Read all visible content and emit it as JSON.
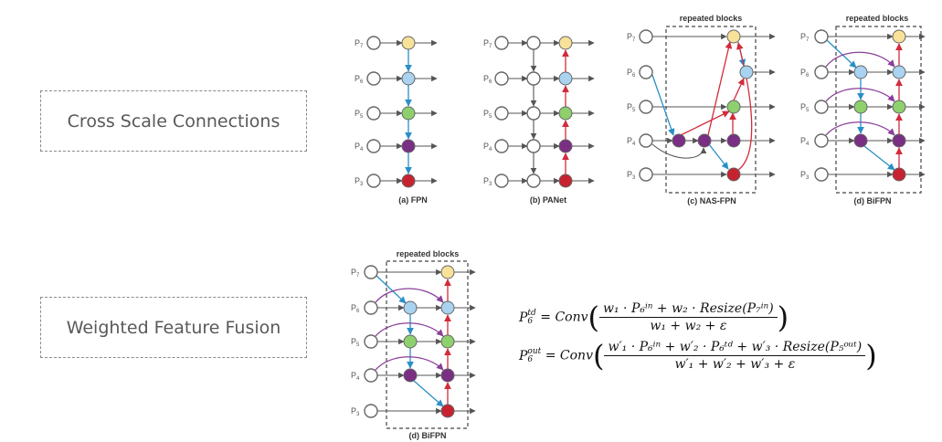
{
  "labels": {
    "cross_scale": "Cross Scale Connections",
    "weighted": "Weighted Feature Fusion"
  },
  "levels": {
    "P7": {
      "base": "P",
      "sub": "7"
    },
    "P6": {
      "base": "P",
      "sub": "6"
    },
    "P5": {
      "base": "P",
      "sub": "5"
    },
    "P4": {
      "base": "P",
      "sub": "4"
    },
    "P3": {
      "base": "P",
      "sub": "3"
    }
  },
  "captions": {
    "fpn": "(a) FPN",
    "panet": "(b) PANet",
    "nasfpn": "(c) NAS-FPN",
    "bifpn": "(d) BiFPN",
    "bifpn_large": "(d) BiFPN"
  },
  "repeated_blocks": "repeated blocks",
  "colors": {
    "p7": "#f8e29a",
    "p6": "#a9d3f0",
    "p5": "#8ed06d",
    "p4": "#7a2e84",
    "p3": "#c7222f",
    "blue_edge": "#2a8fc7",
    "red_edge": "#d22b3a",
    "purple_edge": "#8a3f98"
  },
  "formula": {
    "line1": {
      "lhs_base": "P",
      "lhs_sub": "6",
      "lhs_sup": "td",
      "conv": "Conv",
      "numerator": "w₁ · P₆ⁱⁿ + w₂ · Resize(P₇ⁱⁿ)",
      "denominator": "w₁ + w₂ + ε"
    },
    "line2": {
      "lhs_base": "P",
      "lhs_sub": "6",
      "lhs_sup": "out",
      "conv": "Conv",
      "numerator": "w′₁ · P₆ⁱⁿ + w′₂ · P₆ᵗᵈ + w′₃ · Resize(P₅ᵒᵘᵗ)",
      "denominator": "w′₁ + w′₂ + w′₃ + ε"
    },
    "equals": "=",
    "open_paren": "(",
    "close_paren": ")"
  }
}
